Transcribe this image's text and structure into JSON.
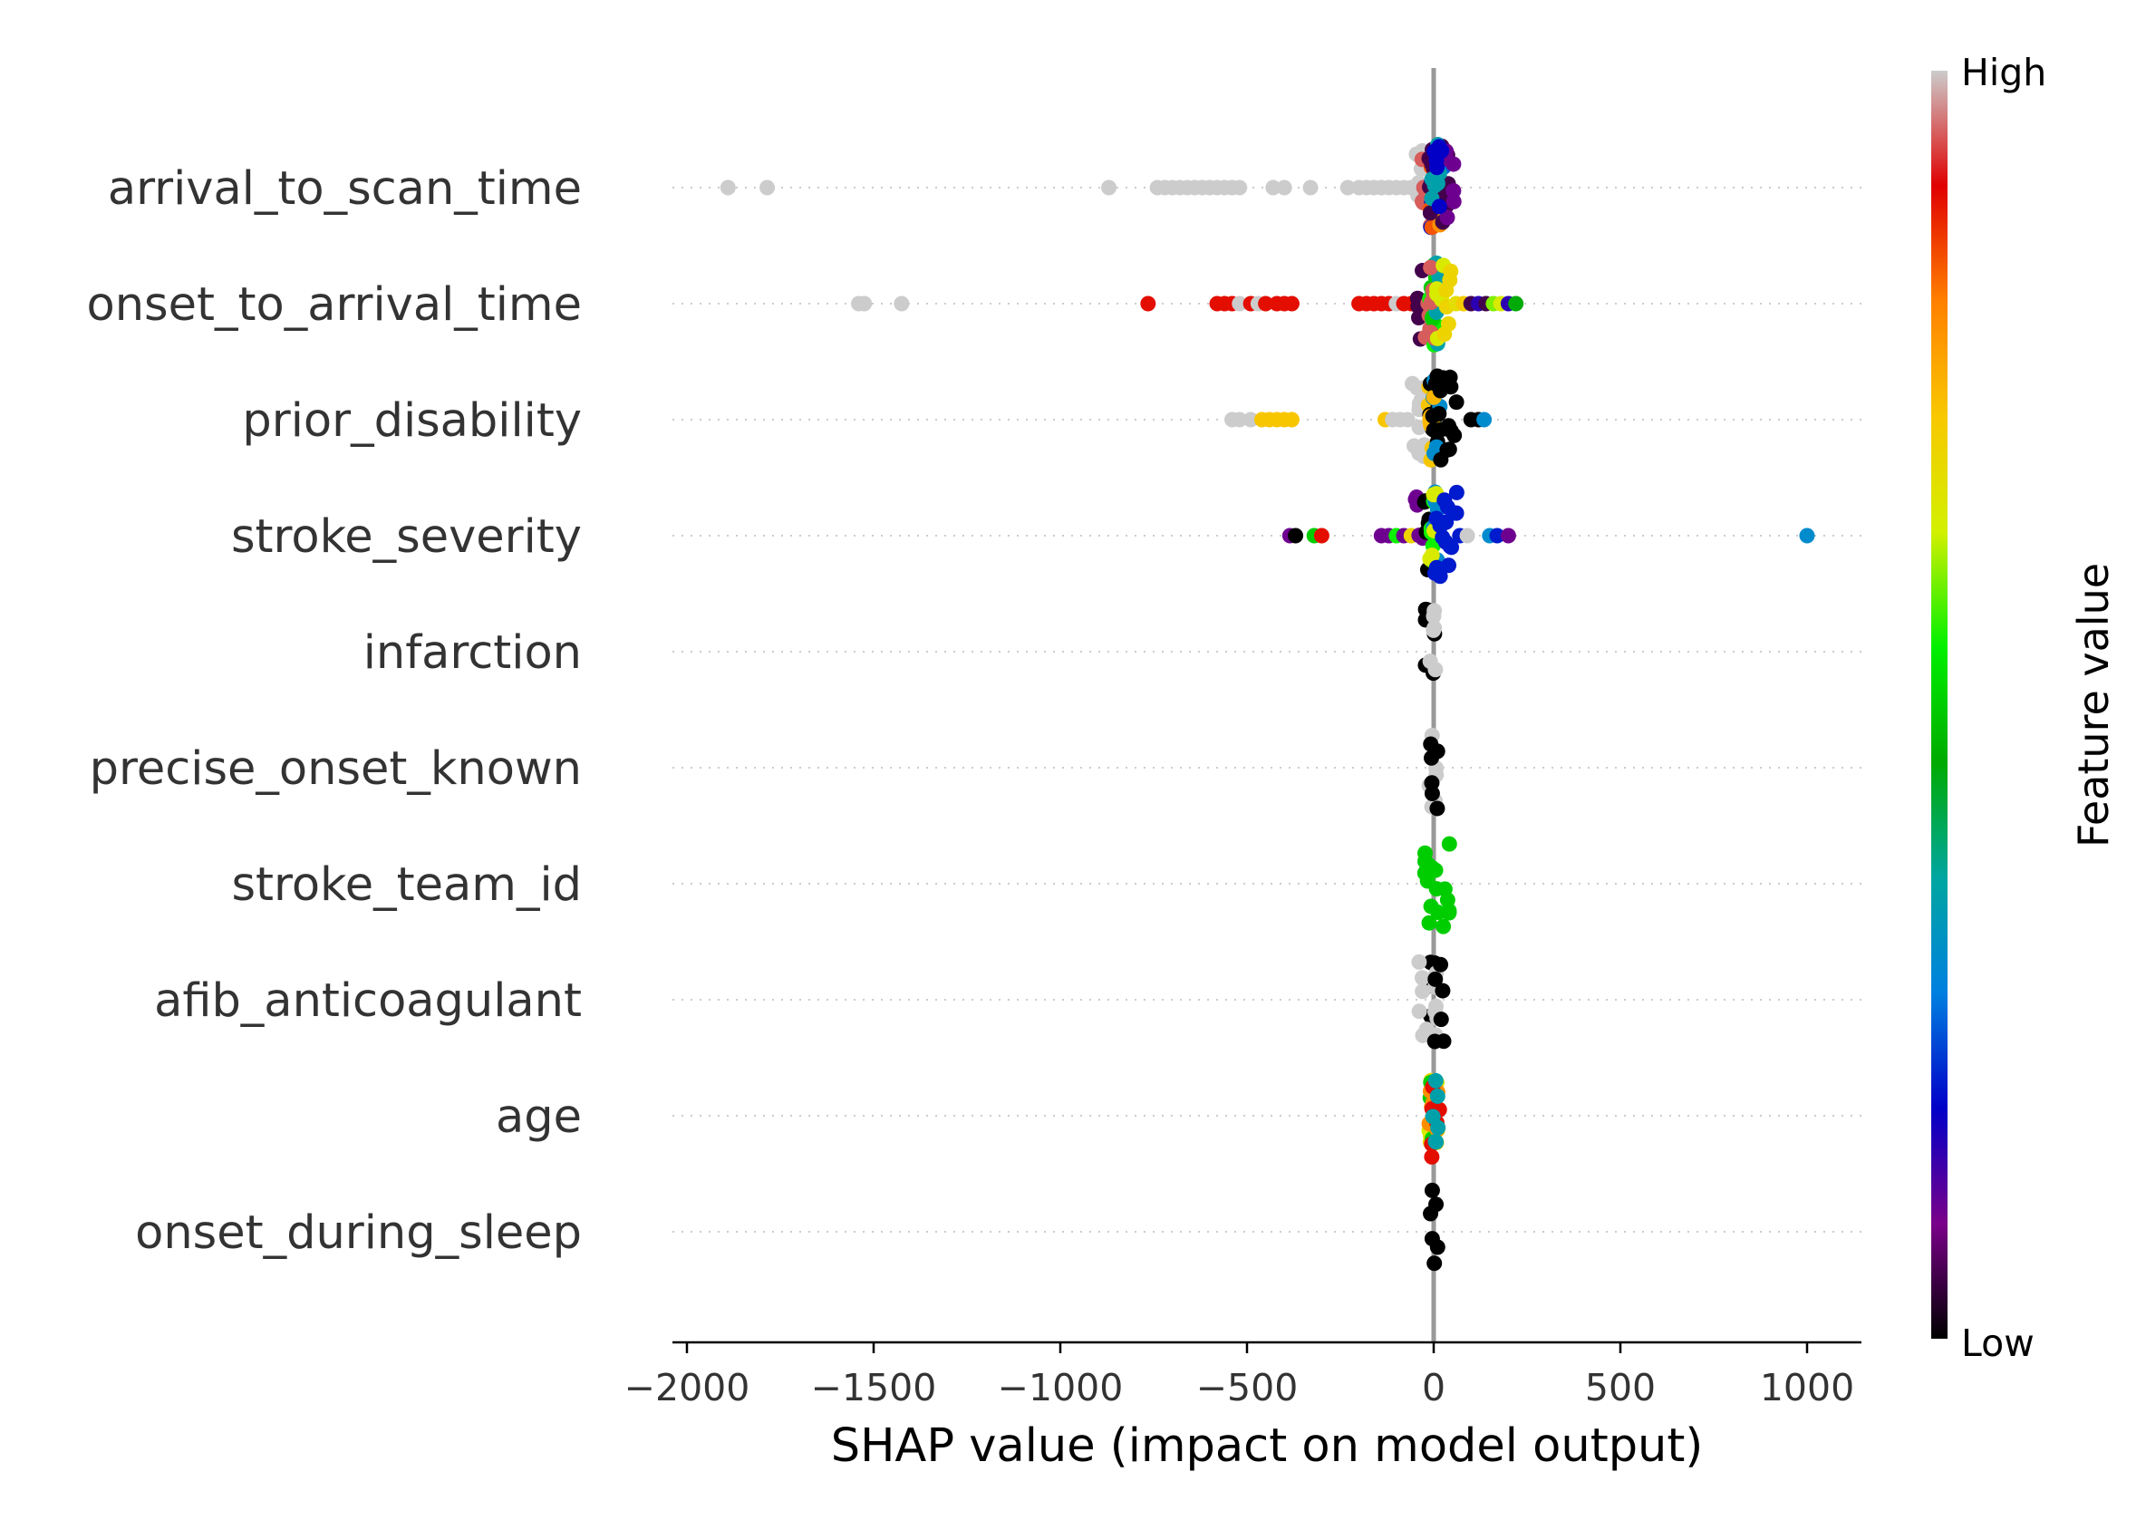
{
  "chart_data": {
    "type": "scatter",
    "subtype": "shap-beeswarm",
    "xlabel": "SHAP value (impact on model output)",
    "xlim": [
      -2030,
      1150
    ],
    "xticks": [
      -2000,
      -1500,
      -1000,
      -500,
      0,
      500,
      1000
    ],
    "xtick_labels": [
      "−2000",
      "−1500",
      "−1000",
      "−500",
      "0",
      "500",
      "1000"
    ],
    "zero_line": 0,
    "grid": "dotted horizontal guide per feature",
    "colorbar": {
      "title": "Feature value",
      "high_label": "High",
      "low_label": "Low",
      "colormap": [
        "#000000",
        "#7a0089",
        "#0000c8",
        "#0080e0",
        "#00a6a0",
        "#00aa00",
        "#00f000",
        "#d2f000",
        "#f8c800",
        "#ff8000",
        "#e00000",
        "#cccccc"
      ]
    },
    "features": [
      {
        "name": "arrival_to_scan_time",
        "points": [
          {
            "x": -1890,
            "c": 1.0
          },
          {
            "x": -1785,
            "c": 1.0
          },
          {
            "x": -870,
            "c": 1.0
          },
          {
            "x": -740,
            "c": 1.0
          },
          {
            "x": -720,
            "c": 1.0
          },
          {
            "x": -700,
            "c": 1.0
          },
          {
            "x": -680,
            "c": 1.0
          },
          {
            "x": -660,
            "c": 1.0
          },
          {
            "x": -640,
            "c": 1.0
          },
          {
            "x": -620,
            "c": 1.0
          },
          {
            "x": -600,
            "c": 1.0
          },
          {
            "x": -580,
            "c": 1.0
          },
          {
            "x": -560,
            "c": 1.0
          },
          {
            "x": -540,
            "c": 1.0
          },
          {
            "x": -520,
            "c": 1.0
          },
          {
            "x": -430,
            "c": 1.0
          },
          {
            "x": -400,
            "c": 1.0
          },
          {
            "x": -330,
            "c": 1.0
          },
          {
            "x": -230,
            "c": 1.0
          },
          {
            "x": -200,
            "c": 1.0
          },
          {
            "x": -180,
            "c": 1.0
          },
          {
            "x": -160,
            "c": 1.0
          },
          {
            "x": -140,
            "c": 1.0
          },
          {
            "x": -120,
            "c": 1.0
          },
          {
            "x": -100,
            "c": 1.0
          },
          {
            "x": -80,
            "c": 1.0
          },
          {
            "x": -60,
            "c": 1.0
          },
          {
            "x": -40,
            "c": 1.0
          },
          {
            "x": -20,
            "c": 0.95
          },
          {
            "x": 0,
            "c": 0.2
          },
          {
            "x": 5,
            "c": 0.3
          },
          {
            "x": 10,
            "c": 0.15
          },
          {
            "x": 0,
            "c": 0.85
          },
          {
            "x": 8,
            "c": 0.8
          },
          {
            "x": 15,
            "c": 0.25
          },
          {
            "x": 30,
            "c": 0.05
          },
          {
            "x": 45,
            "c": 0.1
          },
          {
            "x": 0,
            "c": 0.05
          },
          {
            "x": 5,
            "c": 0.35
          },
          {
            "x": 12,
            "c": 0.18
          }
        ]
      },
      {
        "name": "onset_to_arrival_time",
        "points": [
          {
            "x": -1540,
            "c": 1.0
          },
          {
            "x": -1525,
            "c": 1.0
          },
          {
            "x": -1425,
            "c": 1.0
          },
          {
            "x": -765,
            "c": 0.9
          },
          {
            "x": -580,
            "c": 0.9
          },
          {
            "x": -560,
            "c": 0.9
          },
          {
            "x": -540,
            "c": 0.9
          },
          {
            "x": -520,
            "c": 1.0
          },
          {
            "x": -490,
            "c": 0.9
          },
          {
            "x": -470,
            "c": 1.0
          },
          {
            "x": -450,
            "c": 0.9
          },
          {
            "x": -420,
            "c": 0.9
          },
          {
            "x": -400,
            "c": 0.9
          },
          {
            "x": -380,
            "c": 0.9
          },
          {
            "x": -200,
            "c": 0.9
          },
          {
            "x": -180,
            "c": 0.9
          },
          {
            "x": -160,
            "c": 0.9
          },
          {
            "x": -140,
            "c": 0.9
          },
          {
            "x": -120,
            "c": 0.9
          },
          {
            "x": -100,
            "c": 1.0
          },
          {
            "x": -80,
            "c": 0.9
          },
          {
            "x": -60,
            "c": 0.9
          },
          {
            "x": -40,
            "c": 0.05
          },
          {
            "x": -20,
            "c": 0.95
          },
          {
            "x": 0,
            "c": 0.55
          },
          {
            "x": 5,
            "c": 0.5
          },
          {
            "x": 10,
            "c": 0.35
          },
          {
            "x": 0,
            "c": 0.95
          },
          {
            "x": 20,
            "c": 0.65
          },
          {
            "x": 40,
            "c": 0.7
          },
          {
            "x": 60,
            "c": 0.68
          },
          {
            "x": 80,
            "c": 0.72
          },
          {
            "x": 100,
            "c": 0.05
          },
          {
            "x": 120,
            "c": 0.15
          },
          {
            "x": 140,
            "c": 0.05
          },
          {
            "x": 160,
            "c": 0.6
          },
          {
            "x": 180,
            "c": 0.65
          },
          {
            "x": 200,
            "c": 0.15
          },
          {
            "x": 220,
            "c": 0.45
          }
        ]
      },
      {
        "name": "prior_disability",
        "points": [
          {
            "x": -540,
            "c": 1.0
          },
          {
            "x": -520,
            "c": 1.0
          },
          {
            "x": -490,
            "c": 1.0
          },
          {
            "x": -460,
            "c": 0.73
          },
          {
            "x": -440,
            "c": 0.73
          },
          {
            "x": -420,
            "c": 0.73
          },
          {
            "x": -400,
            "c": 0.73
          },
          {
            "x": -380,
            "c": 0.73
          },
          {
            "x": -130,
            "c": 0.73
          },
          {
            "x": -110,
            "c": 1.0
          },
          {
            "x": -90,
            "c": 1.0
          },
          {
            "x": -70,
            "c": 1.0
          },
          {
            "x": -50,
            "c": 1.0
          },
          {
            "x": -30,
            "c": 1.0
          },
          {
            "x": -10,
            "c": 0.73
          },
          {
            "x": 0,
            "c": 0.0
          },
          {
            "x": 5,
            "c": 0.3
          },
          {
            "x": 0,
            "c": 0.75
          },
          {
            "x": 10,
            "c": 0.0
          },
          {
            "x": 30,
            "c": 0.0
          },
          {
            "x": 50,
            "c": 0.0
          },
          {
            "x": 100,
            "c": 0.0
          },
          {
            "x": 120,
            "c": 0.0
          },
          {
            "x": 135,
            "c": 0.3
          }
        ]
      },
      {
        "name": "stroke_severity",
        "points": [
          {
            "x": -385,
            "c": 0.1
          },
          {
            "x": -370,
            "c": 0.0
          },
          {
            "x": -320,
            "c": 0.5
          },
          {
            "x": -300,
            "c": 0.9
          },
          {
            "x": -140,
            "c": 0.1
          },
          {
            "x": -120,
            "c": 0.1
          },
          {
            "x": -100,
            "c": 0.55
          },
          {
            "x": -80,
            "c": 0.1
          },
          {
            "x": -60,
            "c": 0.7
          },
          {
            "x": -40,
            "c": 0.1
          },
          {
            "x": -20,
            "c": 0.0
          },
          {
            "x": 0,
            "c": 0.55
          },
          {
            "x": 5,
            "c": 0.3
          },
          {
            "x": 0,
            "c": 0.65
          },
          {
            "x": 10,
            "c": 0.2
          },
          {
            "x": 30,
            "c": 0.2
          },
          {
            "x": 50,
            "c": 0.2
          },
          {
            "x": 70,
            "c": 0.2
          },
          {
            "x": 90,
            "c": 1.0
          },
          {
            "x": 150,
            "c": 0.3
          },
          {
            "x": 170,
            "c": 0.2
          },
          {
            "x": 200,
            "c": 0.1
          },
          {
            "x": 1000,
            "c": 0.3
          }
        ]
      },
      {
        "name": "infarction",
        "points": [
          {
            "x": -10,
            "c": 0.0
          },
          {
            "x": 0,
            "c": 1.0
          }
        ]
      },
      {
        "name": "precise_onset_known",
        "points": [
          {
            "x": 0,
            "c": 1.0
          },
          {
            "x": 0,
            "c": 0.0
          }
        ]
      },
      {
        "name": "stroke_team_id",
        "points": [
          {
            "x": 0,
            "c": 0.5
          },
          {
            "x": 35,
            "c": 0.5
          },
          {
            "x": -15,
            "c": 0.5
          }
        ]
      },
      {
        "name": "afib_anticoagulant",
        "points": [
          {
            "x": 0,
            "c": 0.0
          },
          {
            "x": -30,
            "c": 1.0
          },
          {
            "x": 0,
            "c": 1.0
          },
          {
            "x": 15,
            "c": 0.0
          }
        ]
      },
      {
        "name": "age",
        "points": [
          {
            "x": 0,
            "c": 0.7
          },
          {
            "x": 0,
            "c": 0.65
          },
          {
            "x": 0,
            "c": 0.5
          },
          {
            "x": 0,
            "c": 0.8
          },
          {
            "x": 5,
            "c": 0.9
          },
          {
            "x": 0,
            "c": 0.35
          }
        ]
      },
      {
        "name": "onset_during_sleep",
        "points": [
          {
            "x": 0,
            "c": 0.0
          }
        ]
      }
    ]
  }
}
